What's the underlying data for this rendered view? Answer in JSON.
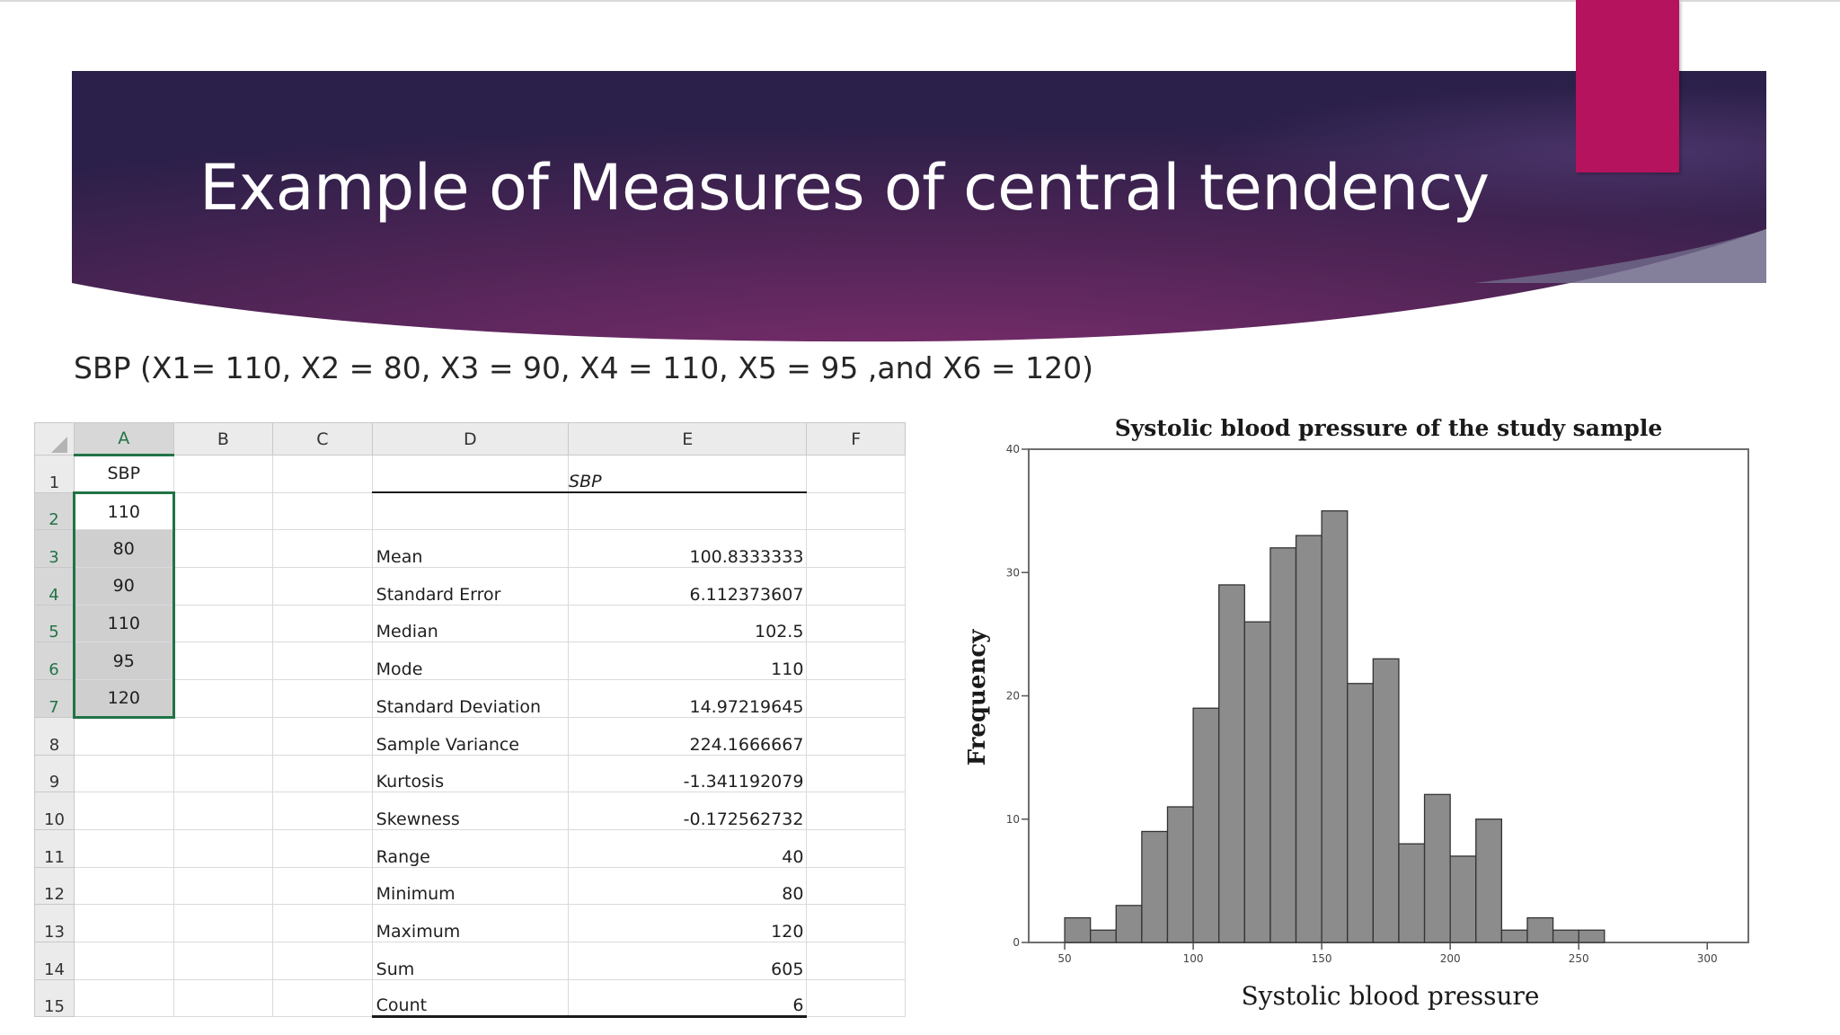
{
  "slide": {
    "title": "Example of Measures of central tendency",
    "subtitle": "SBP (X1= 110, X2 = 80, X3 = 90, X4 = 110, X5 = 95 ,and X6 = 120)",
    "colors": {
      "banner_dark": "#2a1f4e",
      "banner_mid": "#6b2a63",
      "accent": "#b5135d"
    }
  },
  "spreadsheet": {
    "columns": [
      "A",
      "B",
      "C",
      "D",
      "E",
      "F"
    ],
    "rows": [
      "1",
      "2",
      "3",
      "4",
      "5",
      "6",
      "7",
      "8",
      "9",
      "10",
      "11",
      "12",
      "13",
      "14",
      "15"
    ],
    "col_a_header": "SBP",
    "col_a_values": [
      "110",
      "80",
      "90",
      "110",
      "95",
      "120"
    ],
    "stats_header": "SBP",
    "stats": [
      {
        "label": "Mean",
        "value": "100.8333333"
      },
      {
        "label": "Standard Error",
        "value": "6.112373607"
      },
      {
        "label": "Median",
        "value": "102.5"
      },
      {
        "label": "Mode",
        "value": "110"
      },
      {
        "label": "Standard Deviation",
        "value": "14.97219645"
      },
      {
        "label": "Sample Variance",
        "value": "224.1666667"
      },
      {
        "label": "Kurtosis",
        "value": "-1.341192079"
      },
      {
        "label": "Skewness",
        "value": "-0.172562732"
      },
      {
        "label": "Range",
        "value": "40"
      },
      {
        "label": "Minimum",
        "value": "80"
      },
      {
        "label": "Maximum",
        "value": "120"
      },
      {
        "label": "Sum",
        "value": "605"
      },
      {
        "label": "Count",
        "value": "6"
      }
    ]
  },
  "chart_data": {
    "type": "bar",
    "title": "Systolic blood pressure of the study sample",
    "xlabel": "Systolic blood pressure",
    "ylabel": "Frequency",
    "xlim": [
      36,
      316
    ],
    "ylim": [
      0,
      40
    ],
    "xticks": [
      "50",
      "100",
      "150",
      "200",
      "250",
      "300"
    ],
    "yticks": [
      "0",
      "10",
      "20",
      "30",
      "40"
    ],
    "bin_width": 10,
    "bin_starts": [
      50,
      60,
      70,
      80,
      90,
      100,
      110,
      120,
      130,
      140,
      150,
      160,
      170,
      180,
      190,
      200,
      210,
      220,
      230,
      240,
      250
    ],
    "values": [
      2,
      1,
      3,
      9,
      11,
      19,
      29,
      26,
      32,
      33,
      35,
      21,
      23,
      8,
      12,
      7,
      10,
      1,
      2,
      1,
      1
    ],
    "grid": false,
    "bar_color": "#8c8c8c"
  }
}
